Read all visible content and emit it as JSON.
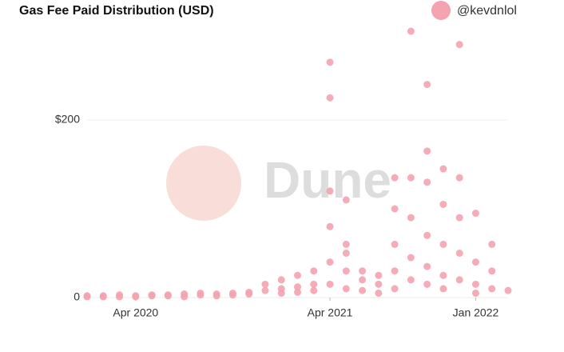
{
  "chart_data": {
    "type": "scatter",
    "title": "Gas Fee Paid Distribution (USD)",
    "watermark": "Dune",
    "xlim": [
      "2020-01",
      "2022-03"
    ],
    "xticks": [
      {
        "value": "2020-04",
        "label": "Apr 2020"
      },
      {
        "value": "2021-04",
        "label": "Apr 2021"
      },
      {
        "value": "2022-01",
        "label": "Jan 2022"
      }
    ],
    "ylim": [
      0,
      300
    ],
    "yticks": [
      0,
      {
        "value": 200,
        "label": "$200"
      }
    ],
    "grid": true,
    "legend": "top-right",
    "series": [
      {
        "name": "@kevdnlol",
        "color": "#f4a3b0",
        "x": [
          "2020-01",
          "2020-01",
          "2020-02",
          "2020-02",
          "2020-03",
          "2020-03",
          "2020-04",
          "2020-04",
          "2020-05",
          "2020-05",
          "2020-06",
          "2020-06",
          "2020-07",
          "2020-07",
          "2020-08",
          "2020-08",
          "2020-09",
          "2020-09",
          "2020-10",
          "2020-10",
          "2020-11",
          "2020-11",
          "2020-12",
          "2020-12",
          "2021-01",
          "2021-01",
          "2021-01",
          "2021-02",
          "2021-02",
          "2021-02",
          "2021-03",
          "2021-03",
          "2021-03",
          "2021-04",
          "2021-04",
          "2021-04",
          "2021-04",
          "2021-04",
          "2021-04",
          "2021-05",
          "2021-05",
          "2021-05",
          "2021-05",
          "2021-05",
          "2021-06",
          "2021-06",
          "2021-06",
          "2021-07",
          "2021-07",
          "2021-07",
          "2021-08",
          "2021-08",
          "2021-08",
          "2021-08",
          "2021-08",
          "2021-09",
          "2021-09",
          "2021-09",
          "2021-09",
          "2021-09",
          "2021-10",
          "2021-10",
          "2021-10",
          "2021-10",
          "2021-10",
          "2021-10",
          "2021-11",
          "2021-11",
          "2021-11",
          "2021-11",
          "2021-11",
          "2021-12",
          "2021-12",
          "2021-12",
          "2021-12",
          "2021-12",
          "2022-01",
          "2022-01",
          "2022-01",
          "2022-01",
          "2022-02",
          "2022-02",
          "2022-02",
          "2022-03"
        ],
        "values": [
          1,
          2,
          1,
          2,
          1,
          3,
          2,
          1,
          2,
          3,
          3,
          2,
          4,
          1,
          5,
          3,
          2,
          4,
          3,
          5,
          6,
          4,
          8,
          15,
          10,
          20,
          5,
          25,
          12,
          6,
          30,
          15,
          8,
          265,
          225,
          120,
          80,
          40,
          15,
          110,
          60,
          30,
          10,
          50,
          20,
          8,
          30,
          15,
          5,
          25,
          135,
          100,
          60,
          30,
          10,
          300,
          135,
          90,
          45,
          20,
          240,
          165,
          130,
          70,
          35,
          15,
          145,
          105,
          60,
          25,
          10,
          285,
          135,
          90,
          50,
          20,
          95,
          40,
          15,
          5,
          60,
          30,
          10,
          8
        ]
      }
    ]
  }
}
